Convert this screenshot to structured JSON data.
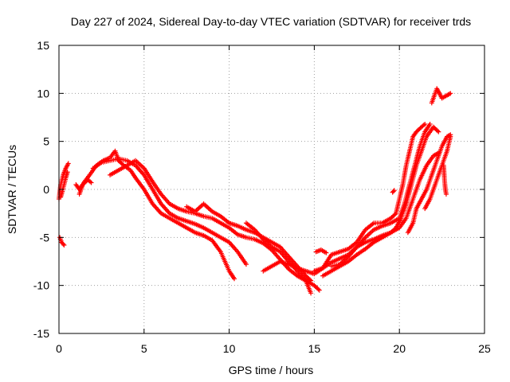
{
  "chart_data": {
    "type": "scatter",
    "title": "Day 227 of 2024, Sidereal Day-to-day VTEC variation (SDTVAR) for receiver trds",
    "xlabel": "GPS time / hours",
    "ylabel": "SDTVAR / TECUs",
    "xlim": [
      0,
      25
    ],
    "ylim": [
      -15,
      15
    ],
    "xticks": [
      0,
      5,
      10,
      15,
      20,
      25
    ],
    "yticks": [
      -15,
      -10,
      -5,
      0,
      5,
      10,
      15
    ],
    "x_tick_labels": [
      "0",
      "5",
      "10",
      "15",
      "20",
      "25"
    ],
    "y_tick_labels": [
      "-15",
      "-10",
      "-5",
      "0",
      "5",
      "10",
      "15"
    ],
    "grid": true,
    "marker": "+",
    "series": [
      {
        "name": "SDTVAR",
        "color": "#ff0000",
        "tracks": [
          [
            [
              0.0,
              -1.0
            ],
            [
              0.1,
              0.5
            ],
            [
              0.25,
              1.5
            ],
            [
              0.4,
              2.2
            ],
            [
              0.55,
              2.7
            ]
          ],
          [
            [
              0.1,
              -0.8
            ],
            [
              0.2,
              -0.2
            ],
            [
              0.3,
              0.5
            ],
            [
              0.4,
              1.2
            ],
            [
              0.5,
              1.8
            ]
          ],
          [
            [
              0.05,
              -5.0
            ],
            [
              0.15,
              -5.5
            ],
            [
              0.3,
              -5.8
            ]
          ],
          [
            [
              1.0,
              0.5
            ],
            [
              1.2,
              0.0
            ],
            [
              1.5,
              0.8
            ],
            [
              1.8,
              1.5
            ],
            [
              2.2,
              2.5
            ],
            [
              2.6,
              3.0
            ],
            [
              3.0,
              3.3
            ],
            [
              3.3,
              4.0
            ],
            [
              3.5,
              3.0
            ],
            [
              3.8,
              2.5
            ],
            [
              4.2,
              2.0
            ],
            [
              4.5,
              1.2
            ],
            [
              5.0,
              0.0
            ],
            [
              5.5,
              -1.5
            ],
            [
              6.0,
              -2.5
            ],
            [
              6.5,
              -3.0
            ],
            [
              7.0,
              -3.5
            ],
            [
              7.5,
              -4.0
            ],
            [
              8.0,
              -4.5
            ],
            [
              8.5,
              -4.8
            ],
            [
              9.0,
              -5.3
            ],
            [
              9.5,
              -6.5
            ],
            [
              10.0,
              -8.5
            ],
            [
              10.3,
              -9.3
            ]
          ],
          [
            [
              2.0,
              2.2
            ],
            [
              2.5,
              2.8
            ],
            [
              3.0,
              3.0
            ],
            [
              3.5,
              3.2
            ],
            [
              4.0,
              3.0
            ],
            [
              4.5,
              2.5
            ],
            [
              5.0,
              1.5
            ],
            [
              5.5,
              0.0
            ],
            [
              6.0,
              -1.5
            ],
            [
              6.5,
              -2.5
            ],
            [
              7.0,
              -3.0
            ],
            [
              7.5,
              -3.3
            ],
            [
              8.0,
              -3.6
            ],
            [
              8.5,
              -4.0
            ],
            [
              9.0,
              -4.5
            ],
            [
              9.5,
              -5.0
            ],
            [
              10.0,
              -5.5
            ],
            [
              10.5,
              -6.5
            ],
            [
              11.0,
              -7.8
            ]
          ],
          [
            [
              3.0,
              1.5
            ],
            [
              3.5,
              2.0
            ],
            [
              4.0,
              2.5
            ],
            [
              4.5,
              3.0
            ],
            [
              5.0,
              2.2
            ],
            [
              5.5,
              0.8
            ],
            [
              6.0,
              -0.5
            ],
            [
              6.5,
              -1.5
            ],
            [
              7.0,
              -2.0
            ],
            [
              7.5,
              -2.3
            ],
            [
              8.0,
              -2.5
            ],
            [
              8.5,
              -2.8
            ],
            [
              9.0,
              -3.0
            ],
            [
              9.5,
              -3.5
            ],
            [
              10.0,
              -4.0
            ],
            [
              10.5,
              -4.7
            ],
            [
              11.0,
              -5.0
            ],
            [
              11.5,
              -5.2
            ],
            [
              12.0,
              -5.6
            ],
            [
              12.5,
              -6.3
            ],
            [
              13.0,
              -7.3
            ],
            [
              13.5,
              -8.3
            ],
            [
              14.0,
              -9.0
            ],
            [
              14.5,
              -9.5
            ],
            [
              15.0,
              -10.0
            ],
            [
              15.3,
              -10.5
            ]
          ],
          [
            [
              7.5,
              -1.8
            ],
            [
              8.0,
              -2.3
            ],
            [
              8.5,
              -1.5
            ],
            [
              9.0,
              -2.3
            ],
            [
              9.5,
              -2.8
            ],
            [
              10.0,
              -3.5
            ],
            [
              10.5,
              -3.8
            ],
            [
              11.0,
              -4.2
            ],
            [
              11.5,
              -4.5
            ],
            [
              12.0,
              -5.0
            ],
            [
              12.5,
              -5.5
            ],
            [
              13.0,
              -6.0
            ],
            [
              13.5,
              -7.0
            ],
            [
              14.0,
              -8.0
            ],
            [
              14.5,
              -9.0
            ],
            [
              14.8,
              -9.5
            ]
          ],
          [
            [
              11.0,
              -3.5
            ],
            [
              11.5,
              -4.2
            ],
            [
              12.0,
              -5.2
            ],
            [
              12.5,
              -6.0
            ],
            [
              13.0,
              -6.5
            ],
            [
              13.5,
              -7.5
            ],
            [
              14.0,
              -8.5
            ],
            [
              14.5,
              -9.5
            ],
            [
              14.8,
              -10.8
            ]
          ],
          [
            [
              12.0,
              -8.5
            ],
            [
              12.5,
              -8.0
            ],
            [
              13.0,
              -7.5
            ],
            [
              13.5,
              -7.8
            ],
            [
              14.0,
              -8.2
            ],
            [
              14.5,
              -8.5
            ],
            [
              15.0,
              -8.8
            ],
            [
              15.5,
              -8.2
            ],
            [
              16.0,
              -7.6
            ],
            [
              16.5,
              -7.2
            ],
            [
              17.0,
              -6.8
            ],
            [
              17.5,
              -6.0
            ],
            [
              18.0,
              -5.5
            ],
            [
              18.5,
              -5.2
            ],
            [
              19.0,
              -4.8
            ],
            [
              19.5,
              -4.5
            ],
            [
              20.0,
              -4.0
            ],
            [
              20.4,
              -3.0
            ],
            [
              20.8,
              -1.0
            ],
            [
              21.2,
              1.0
            ],
            [
              21.6,
              2.5
            ],
            [
              22.0,
              3.5
            ],
            [
              22.3,
              3.8
            ]
          ],
          [
            [
              15.5,
              -9.0
            ],
            [
              16.0,
              -8.5
            ],
            [
              16.5,
              -8.0
            ],
            [
              17.0,
              -7.5
            ],
            [
              17.5,
              -6.8
            ],
            [
              18.0,
              -6.2
            ],
            [
              18.5,
              -5.5
            ],
            [
              19.0,
              -5.0
            ],
            [
              19.5,
              -4.5
            ],
            [
              19.8,
              -4.0
            ],
            [
              20.1,
              -3.0
            ],
            [
              20.4,
              -1.5
            ],
            [
              20.7,
              0.5
            ],
            [
              21.0,
              2.5
            ],
            [
              21.3,
              4.0
            ],
            [
              21.6,
              5.5
            ],
            [
              22.0,
              6.5
            ],
            [
              22.3,
              6.0
            ]
          ],
          [
            [
              16.0,
              -8.0
            ],
            [
              16.5,
              -7.8
            ],
            [
              17.0,
              -7.0
            ],
            [
              17.5,
              -6.0
            ],
            [
              18.0,
              -5.0
            ],
            [
              18.5,
              -4.2
            ],
            [
              19.0,
              -3.8
            ],
            [
              19.5,
              -3.5
            ],
            [
              20.0,
              -3.0
            ],
            [
              20.3,
              -1.5
            ],
            [
              20.6,
              0.5
            ],
            [
              20.9,
              2.5
            ],
            [
              21.2,
              4.5
            ],
            [
              21.5,
              6.0
            ],
            [
              21.8,
              6.8
            ]
          ],
          [
            [
              15.0,
              -8.5
            ],
            [
              15.5,
              -8.2
            ],
            [
              16.0,
              -6.8
            ],
            [
              16.5,
              -6.5
            ],
            [
              17.0,
              -6.2
            ],
            [
              17.5,
              -5.5
            ],
            [
              18.0,
              -4.2
            ],
            [
              18.5,
              -3.5
            ],
            [
              19.0,
              -3.5
            ],
            [
              19.5,
              -3.0
            ],
            [
              19.8,
              -2.5
            ],
            [
              20.0,
              -1.0
            ],
            [
              20.2,
              0.5
            ],
            [
              20.4,
              2.5
            ],
            [
              20.6,
              4.0
            ],
            [
              20.8,
              5.5
            ],
            [
              21.0,
              6.0
            ],
            [
              21.3,
              6.5
            ],
            [
              21.5,
              6.8
            ]
          ],
          [
            [
              20.5,
              -4.5
            ],
            [
              20.8,
              -3.5
            ],
            [
              21.0,
              -2.0
            ],
            [
              21.3,
              -1.0
            ],
            [
              21.6,
              0.0
            ],
            [
              21.9,
              1.5
            ],
            [
              22.2,
              3.0
            ],
            [
              22.5,
              4.5
            ],
            [
              22.8,
              5.5
            ],
            [
              23.0,
              5.7
            ]
          ],
          [
            [
              21.5,
              -2.0
            ],
            [
              21.8,
              -1.0
            ],
            [
              22.0,
              0.0
            ],
            [
              22.2,
              1.0
            ],
            [
              22.4,
              2.0
            ],
            [
              22.6,
              3.0
            ],
            [
              22.8,
              4.0
            ],
            [
              23.0,
              5.5
            ]
          ],
          [
            [
              22.6,
              2.5
            ],
            [
              22.65,
              1.0
            ],
            [
              22.7,
              0.0
            ],
            [
              22.75,
              -0.5
            ]
          ],
          [
            [
              21.9,
              9.0
            ],
            [
              22.2,
              10.5
            ],
            [
              22.5,
              9.5
            ],
            [
              22.8,
              9.8
            ],
            [
              23.0,
              10.0
            ]
          ],
          [
            [
              1.2,
              -0.5
            ],
            [
              1.4,
              0.5
            ],
            [
              1.7,
              1.0
            ],
            [
              1.9,
              0.7
            ]
          ],
          [
            [
              19.6,
              -0.3
            ],
            [
              19.7,
              -0.1
            ]
          ],
          [
            [
              15.1,
              -6.5
            ],
            [
              15.4,
              -6.3
            ],
            [
              15.7,
              -6.6
            ]
          ]
        ]
      }
    ]
  }
}
